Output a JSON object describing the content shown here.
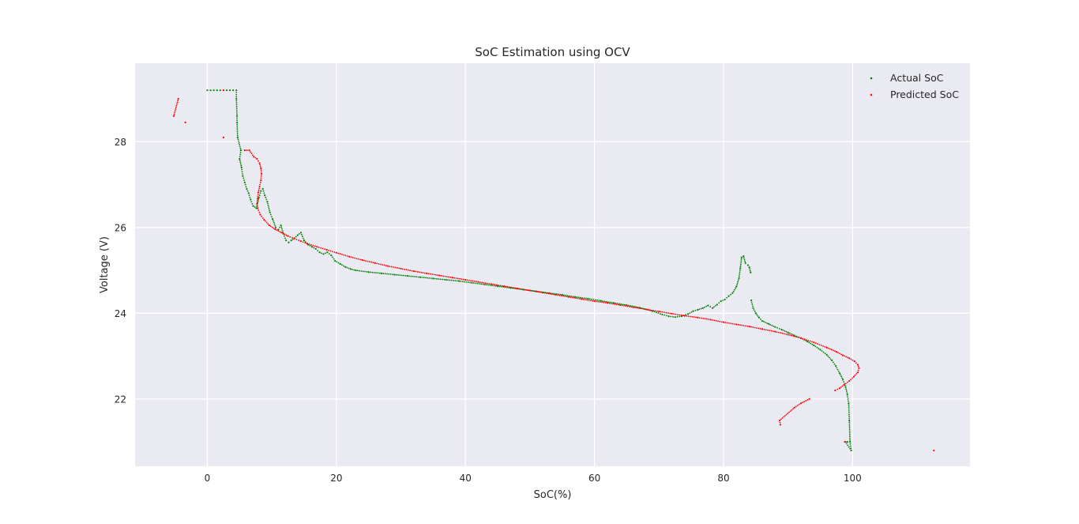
{
  "chart_data": {
    "type": "scatter",
    "title": "SoC Estimation using OCV",
    "xlabel": "SoC(%)",
    "ylabel": "Voltage (V)",
    "xlim": [
      -11.2,
      118.2
    ],
    "ylim": [
      20.43,
      29.83
    ],
    "xticks": [
      0,
      20,
      40,
      60,
      80,
      100
    ],
    "yticks": [
      22,
      24,
      26,
      28
    ],
    "grid": true,
    "background": "#eaeaf2",
    "legend_position": "top-right",
    "series": [
      {
        "name": "Actual SoC",
        "color": "#008000",
        "points": [
          [
            0.0,
            29.2
          ],
          [
            0.5,
            29.2
          ],
          [
            1.0,
            29.2
          ],
          [
            1.5,
            29.2
          ],
          [
            2.0,
            29.2
          ],
          [
            2.5,
            29.2
          ],
          [
            3.0,
            29.2
          ],
          [
            3.5,
            29.2
          ],
          [
            4.0,
            29.2
          ],
          [
            4.5,
            29.2
          ],
          [
            4.5,
            29.0
          ],
          [
            4.6,
            28.6
          ],
          [
            4.6,
            28.45
          ],
          [
            4.7,
            28.1
          ],
          [
            5.2,
            27.8
          ],
          [
            5.0,
            27.6
          ],
          [
            5.3,
            27.4
          ],
          [
            5.5,
            27.2
          ],
          [
            5.8,
            27.05
          ],
          [
            6.1,
            26.9
          ],
          [
            6.4,
            26.8
          ],
          [
            6.7,
            26.65
          ],
          [
            7.1,
            26.5
          ],
          [
            7.6,
            26.45
          ],
          [
            8.0,
            26.7
          ],
          [
            8.3,
            26.85
          ],
          [
            8.6,
            26.9
          ],
          [
            8.9,
            26.75
          ],
          [
            9.3,
            26.6
          ],
          [
            9.7,
            26.35
          ],
          [
            10.1,
            26.2
          ],
          [
            10.6,
            26.0
          ],
          [
            11.0,
            25.95
          ],
          [
            11.4,
            26.05
          ],
          [
            11.8,
            25.85
          ],
          [
            12.2,
            25.7
          ],
          [
            12.6,
            25.65
          ],
          [
            13.0,
            25.7
          ],
          [
            13.5,
            25.75
          ],
          [
            14.0,
            25.82
          ],
          [
            14.5,
            25.88
          ],
          [
            15.0,
            25.7
          ],
          [
            15.6,
            25.6
          ],
          [
            16.2,
            25.55
          ],
          [
            16.8,
            25.5
          ],
          [
            17.4,
            25.42
          ],
          [
            18.0,
            25.38
          ],
          [
            18.6,
            25.42
          ],
          [
            19.2,
            25.35
          ],
          [
            19.8,
            25.22
          ],
          [
            20.6,
            25.15
          ],
          [
            21.4,
            25.08
          ],
          [
            22.2,
            25.03
          ],
          [
            23.0,
            25.0
          ],
          [
            25.0,
            24.96
          ],
          [
            27.0,
            24.93
          ],
          [
            29.0,
            24.9
          ],
          [
            31.0,
            24.87
          ],
          [
            33.0,
            24.84
          ],
          [
            35.0,
            24.81
          ],
          [
            37.0,
            24.78
          ],
          [
            39.0,
            24.75
          ],
          [
            41.0,
            24.71
          ],
          [
            43.0,
            24.67
          ],
          [
            45.0,
            24.63
          ],
          [
            47.0,
            24.59
          ],
          [
            49.0,
            24.55
          ],
          [
            51.0,
            24.51
          ],
          [
            53.0,
            24.47
          ],
          [
            55.0,
            24.43
          ],
          [
            57.0,
            24.38
          ],
          [
            59.0,
            24.34
          ],
          [
            61.0,
            24.29
          ],
          [
            63.0,
            24.24
          ],
          [
            65.0,
            24.19
          ],
          [
            67.0,
            24.13
          ],
          [
            69.0,
            24.05
          ],
          [
            70.5,
            23.97
          ],
          [
            71.5,
            23.93
          ],
          [
            72.5,
            23.91
          ],
          [
            73.5,
            23.93
          ],
          [
            74.5,
            23.98
          ],
          [
            75.3,
            24.05
          ],
          [
            76.0,
            24.08
          ],
          [
            76.8,
            24.12
          ],
          [
            77.6,
            24.18
          ],
          [
            78.3,
            24.12
          ],
          [
            79.0,
            24.2
          ],
          [
            79.6,
            24.28
          ],
          [
            80.2,
            24.32
          ],
          [
            80.8,
            24.4
          ],
          [
            81.4,
            24.47
          ],
          [
            82.0,
            24.62
          ],
          [
            82.4,
            24.82
          ],
          [
            82.6,
            25.05
          ],
          [
            82.8,
            25.3
          ],
          [
            83.1,
            25.33
          ],
          [
            83.4,
            25.17
          ],
          [
            83.8,
            25.12
          ],
          [
            84.0,
            25.07
          ],
          [
            84.2,
            24.95
          ],
          [
            84.3,
            24.3
          ],
          [
            84.6,
            24.12
          ],
          [
            85.0,
            24.0
          ],
          [
            85.5,
            23.9
          ],
          [
            86.0,
            23.82
          ],
          [
            87.0,
            23.75
          ],
          [
            88.0,
            23.68
          ],
          [
            89.0,
            23.62
          ],
          [
            90.0,
            23.55
          ],
          [
            91.0,
            23.48
          ],
          [
            92.0,
            23.42
          ],
          [
            93.0,
            23.34
          ],
          [
            94.0,
            23.25
          ],
          [
            95.0,
            23.15
          ],
          [
            96.0,
            23.03
          ],
          [
            96.8,
            22.9
          ],
          [
            97.4,
            22.77
          ],
          [
            98.0,
            22.6
          ],
          [
            98.5,
            22.45
          ],
          [
            98.9,
            22.3
          ],
          [
            99.2,
            22.1
          ],
          [
            99.4,
            21.9
          ],
          [
            99.5,
            21.5
          ],
          [
            99.6,
            21.0
          ],
          [
            99.8,
            20.8
          ],
          [
            98.9,
            21.0
          ],
          [
            99.2,
            21.0
          ]
        ]
      },
      {
        "name": "Predicted SoC",
        "color": "#ff0000",
        "points": [
          [
            -5.2,
            28.6
          ],
          [
            -4.5,
            29.0
          ],
          [
            -3.4,
            28.45
          ],
          [
            2.5,
            29.2
          ],
          [
            2.5,
            28.1
          ],
          [
            5.8,
            27.8
          ],
          [
            6.5,
            27.8
          ],
          [
            7.2,
            27.65
          ],
          [
            7.7,
            27.6
          ],
          [
            8.1,
            27.5
          ],
          [
            8.3,
            27.38
          ],
          [
            8.4,
            27.25
          ],
          [
            8.3,
            27.1
          ],
          [
            8.1,
            26.95
          ],
          [
            7.9,
            26.82
          ],
          [
            7.8,
            26.68
          ],
          [
            7.7,
            26.55
          ],
          [
            7.8,
            26.45
          ],
          [
            8.2,
            26.3
          ],
          [
            8.8,
            26.18
          ],
          [
            9.6,
            26.05
          ],
          [
            10.5,
            25.96
          ],
          [
            11.5,
            25.88
          ],
          [
            12.5,
            25.8
          ],
          [
            13.5,
            25.74
          ],
          [
            14.5,
            25.68
          ],
          [
            15.5,
            25.62
          ],
          [
            17.0,
            25.55
          ],
          [
            18.5,
            25.48
          ],
          [
            20.0,
            25.41
          ],
          [
            22.0,
            25.32
          ],
          [
            24.0,
            25.24
          ],
          [
            26.0,
            25.17
          ],
          [
            28.0,
            25.1
          ],
          [
            30.0,
            25.04
          ],
          [
            32.0,
            24.98
          ],
          [
            34.0,
            24.93
          ],
          [
            36.0,
            24.88
          ],
          [
            38.0,
            24.83
          ],
          [
            40.0,
            24.78
          ],
          [
            42.0,
            24.73
          ],
          [
            44.0,
            24.68
          ],
          [
            46.0,
            24.63
          ],
          [
            48.0,
            24.58
          ],
          [
            50.0,
            24.53
          ],
          [
            52.0,
            24.48
          ],
          [
            54.0,
            24.43
          ],
          [
            56.0,
            24.38
          ],
          [
            58.0,
            24.33
          ],
          [
            60.0,
            24.28
          ],
          [
            62.0,
            24.24
          ],
          [
            64.0,
            24.19
          ],
          [
            66.0,
            24.14
          ],
          [
            68.0,
            24.09
          ],
          [
            70.0,
            24.04
          ],
          [
            72.0,
            23.99
          ],
          [
            74.0,
            23.94
          ],
          [
            76.0,
            23.9
          ],
          [
            78.0,
            23.85
          ],
          [
            80.0,
            23.79
          ],
          [
            82.0,
            23.74
          ],
          [
            84.0,
            23.69
          ],
          [
            86.0,
            23.63
          ],
          [
            88.0,
            23.57
          ],
          [
            90.0,
            23.5
          ],
          [
            92.0,
            23.42
          ],
          [
            94.0,
            23.32
          ],
          [
            96.0,
            23.2
          ],
          [
            97.5,
            23.1
          ],
          [
            98.5,
            23.02
          ],
          [
            99.5,
            22.95
          ],
          [
            100.3,
            22.88
          ],
          [
            100.8,
            22.8
          ],
          [
            101.0,
            22.72
          ],
          [
            100.8,
            22.62
          ],
          [
            100.2,
            22.52
          ],
          [
            99.5,
            22.42
          ],
          [
            98.7,
            22.33
          ],
          [
            98.0,
            22.25
          ],
          [
            97.3,
            22.2
          ],
          [
            93.3,
            22.0
          ],
          [
            92.0,
            21.9
          ],
          [
            91.0,
            21.8
          ],
          [
            88.7,
            21.5
          ],
          [
            88.8,
            21.4
          ],
          [
            98.8,
            21.0
          ],
          [
            112.6,
            20.8
          ]
        ]
      }
    ]
  }
}
